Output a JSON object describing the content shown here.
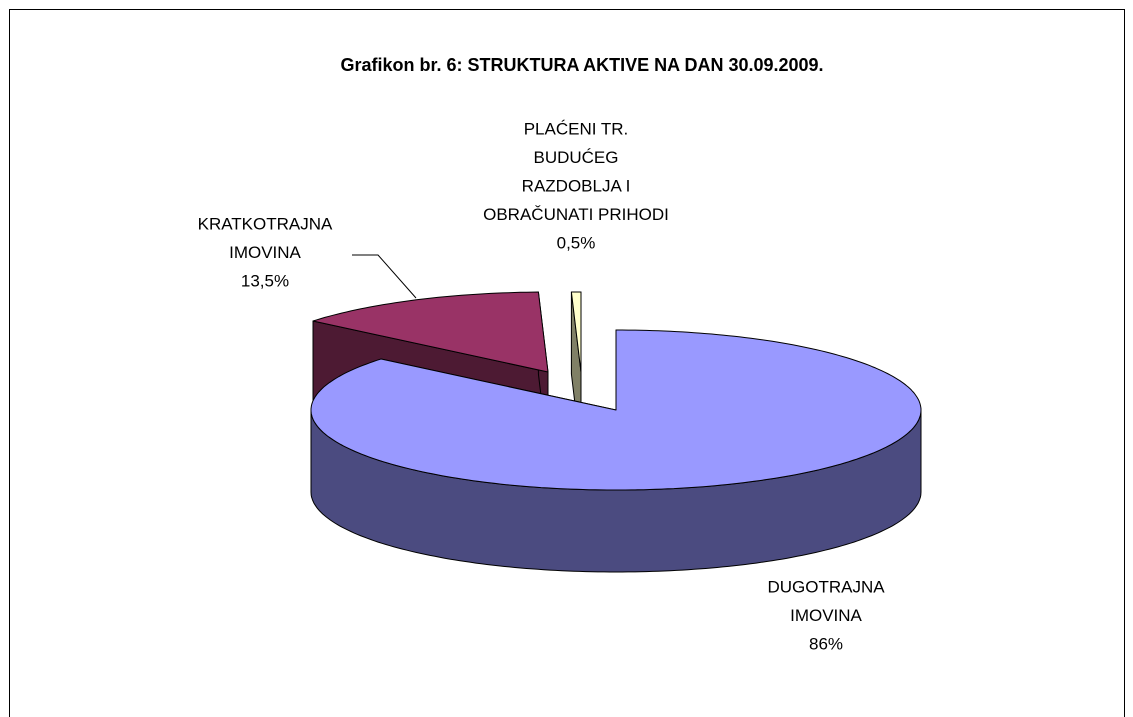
{
  "chart_data": {
    "type": "pie3d",
    "title": "Grafikon br. 6: STRUKTURA AKTIVE NA DAN 30.09.2009.",
    "categories": [
      [
        "DUGOTRAJNA",
        "IMOVINA"
      ],
      [
        "KRATKOTRAJNA",
        "IMOVINA"
      ],
      [
        "PLAĆENI TR.",
        "BUDUĆEG",
        "RAZDOBLJA I",
        "OBRAČUNATI PRIHODI"
      ]
    ],
    "values": [
      86,
      13.5,
      0.5
    ],
    "value_labels": [
      "86%",
      "13,5%",
      "0,5%"
    ],
    "colors": [
      "#9999ff",
      "#993366",
      "#ffffcc"
    ],
    "side_colors": [
      "#4b4b80",
      "#4d1a33",
      "#808066"
    ]
  }
}
